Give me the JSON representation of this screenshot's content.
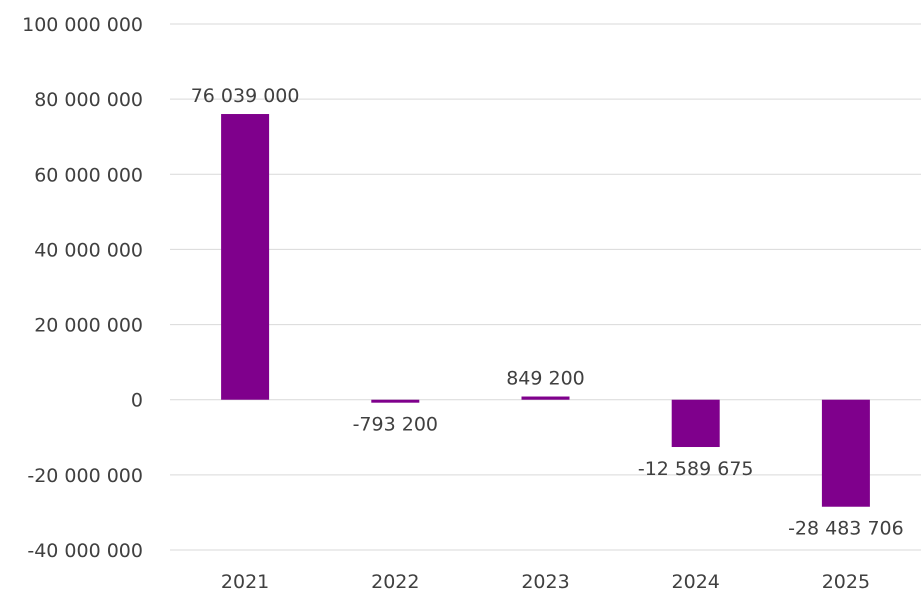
{
  "chart_data": {
    "type": "bar",
    "categories": [
      "2021",
      "2022",
      "2023",
      "2024",
      "2025"
    ],
    "values": [
      76039000,
      -793200,
      849200,
      -12589675,
      -28483706
    ],
    "data_labels": [
      "76 039 000",
      "-793 200",
      "849 200",
      "-12 589 675",
      "-28 483 706"
    ],
    "y_ticks": [
      100000000,
      80000000,
      60000000,
      40000000,
      20000000,
      0,
      -20000000,
      -40000000
    ],
    "y_tick_labels": [
      "100 000 000",
      "80 000 000",
      "60 000 000",
      "40 000 000",
      "20 000 000",
      "0",
      "-20 000 000",
      "-40 000 000"
    ],
    "ylim": [
      -40000000,
      100000000
    ],
    "title": "",
    "xlabel": "",
    "ylabel": "",
    "grid": true,
    "legend": "none",
    "bar_color": "#7f008c"
  }
}
